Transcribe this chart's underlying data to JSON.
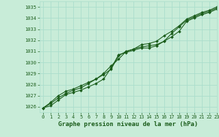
{
  "background_color": "#c8ecd8",
  "grid_color": "#aaddcc",
  "line_color": "#1a5c1a",
  "title": "Graphe pression niveau de la mer (hPa)",
  "xlim": [
    -0.5,
    23
  ],
  "ylim": [
    1025.5,
    1035.5
  ],
  "yticks": [
    1026,
    1027,
    1028,
    1029,
    1030,
    1031,
    1032,
    1033,
    1034,
    1035
  ],
  "xticks": [
    0,
    1,
    2,
    3,
    4,
    5,
    6,
    7,
    8,
    9,
    10,
    11,
    12,
    13,
    14,
    15,
    16,
    17,
    18,
    19,
    20,
    21,
    22,
    23
  ],
  "series1": {
    "x": [
      0,
      1,
      2,
      3,
      4,
      5,
      6,
      7,
      8,
      9,
      10,
      11,
      12,
      13,
      14,
      15,
      16,
      17,
      18,
      19,
      20,
      21,
      22,
      23
    ],
    "y": [
      1025.9,
      1026.1,
      1026.6,
      1027.1,
      1027.3,
      1027.5,
      1027.8,
      1028.1,
      1028.5,
      1029.5,
      1030.7,
      1030.9,
      1031.1,
      1031.3,
      1031.3,
      1031.5,
      1031.9,
      1032.3,
      1032.8,
      1033.7,
      1034.0,
      1034.3,
      1034.5,
      1034.8
    ]
  },
  "series2": {
    "x": [
      0,
      1,
      2,
      3,
      4,
      5,
      6,
      7,
      8,
      9,
      10,
      11,
      12,
      13,
      14,
      15,
      16,
      17,
      18,
      19,
      20,
      21,
      22,
      23
    ],
    "y": [
      1025.9,
      1026.3,
      1026.8,
      1027.2,
      1027.5,
      1027.7,
      1028.1,
      1028.5,
      1028.9,
      1029.4,
      1030.6,
      1031.0,
      1031.2,
      1031.4,
      1031.5,
      1031.6,
      1031.9,
      1032.6,
      1033.2,
      1033.8,
      1034.1,
      1034.4,
      1034.6,
      1034.9
    ]
  },
  "series3": {
    "x": [
      0,
      1,
      2,
      3,
      4,
      5,
      6,
      7,
      8,
      9,
      10,
      11,
      12,
      13,
      14,
      15,
      16,
      17,
      18,
      19,
      20,
      21,
      22,
      23
    ],
    "y": [
      1025.9,
      1026.4,
      1027.0,
      1027.4,
      1027.6,
      1027.9,
      1028.2,
      1028.5,
      1029.0,
      1029.7,
      1030.3,
      1031.0,
      1031.2,
      1031.6,
      1031.7,
      1031.9,
      1032.4,
      1032.8,
      1033.3,
      1033.9,
      1034.2,
      1034.5,
      1034.7,
      1035.0
    ]
  },
  "title_fontsize": 6.5,
  "tick_fontsize": 5,
  "title_color": "#1a5c1a",
  "tick_color": "#1a5c1a",
  "markersize": 2.0,
  "linewidth": 0.8
}
